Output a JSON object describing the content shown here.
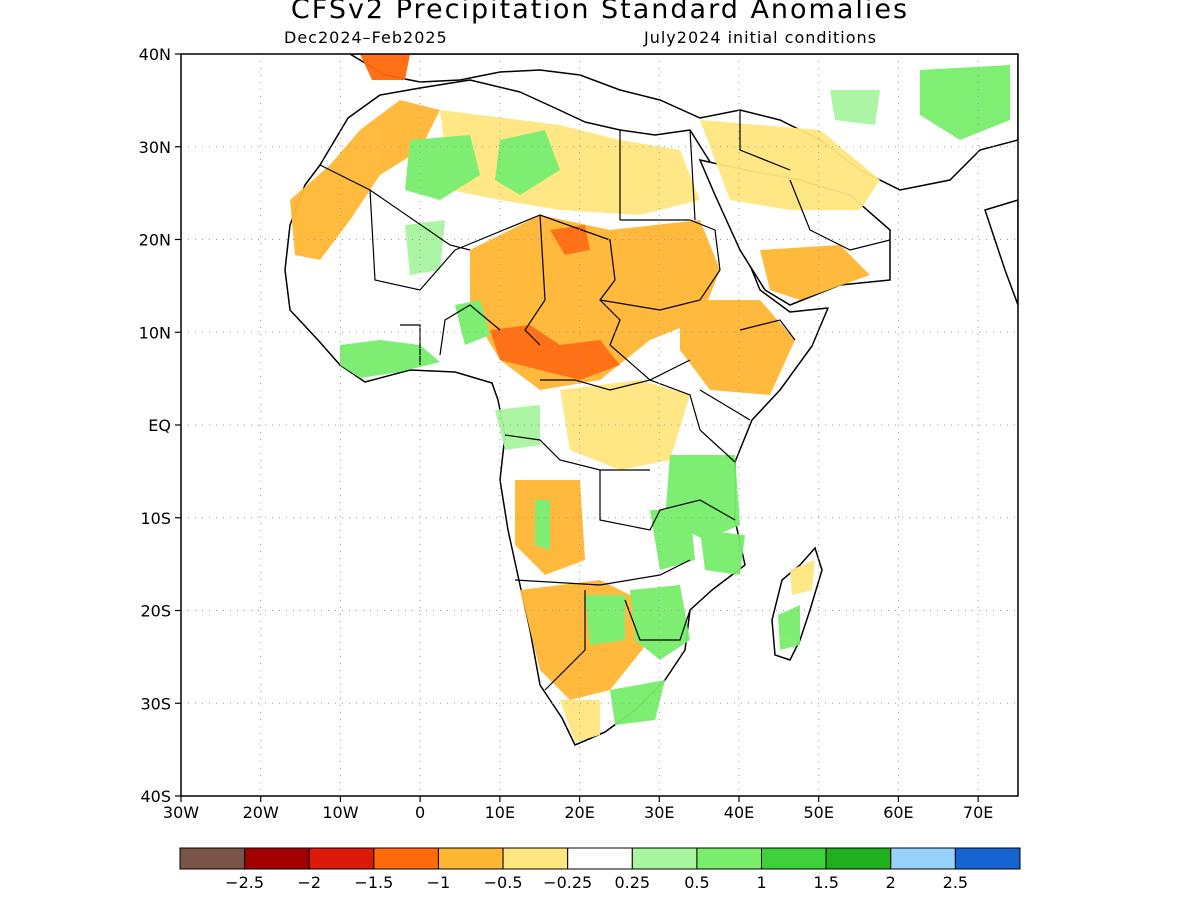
{
  "title": "CFSv2 Precipitation Standard Anomalies",
  "subtitle_left": "Dec2024–Feb2025",
  "subtitle_right": "July2024 initial conditions",
  "map": {
    "lat_range": [
      -40,
      40
    ],
    "lon_range": [
      -30,
      75
    ],
    "lat_ticks": [
      {
        "value": 40,
        "label": "40N"
      },
      {
        "value": 30,
        "label": "30N"
      },
      {
        "value": 20,
        "label": "20N"
      },
      {
        "value": 10,
        "label": "10N"
      },
      {
        "value": 0,
        "label": "EQ"
      },
      {
        "value": -10,
        "label": "10S"
      },
      {
        "value": -20,
        "label": "20S"
      },
      {
        "value": -30,
        "label": "30S"
      },
      {
        "value": -40,
        "label": "40S"
      }
    ],
    "lon_ticks": [
      {
        "value": -30,
        "label": "30W"
      },
      {
        "value": -20,
        "label": "20W"
      },
      {
        "value": -10,
        "label": "10W"
      },
      {
        "value": 0,
        "label": "0"
      },
      {
        "value": 10,
        "label": "10E"
      },
      {
        "value": 20,
        "label": "20E"
      },
      {
        "value": 30,
        "label": "30E"
      },
      {
        "value": 40,
        "label": "40E"
      },
      {
        "value": 50,
        "label": "50E"
      },
      {
        "value": 60,
        "label": "60E"
      },
      {
        "value": 70,
        "label": "70E"
      }
    ],
    "grid": "dotted"
  },
  "colorbar": {
    "colors": [
      "#7a5446",
      "#a50000",
      "#dd1a0a",
      "#ff6a0a",
      "#ffb733",
      "#ffe680",
      "#ffffff",
      "#a8f5a0",
      "#78ee6c",
      "#3ed23a",
      "#1fb01e",
      "#96d2fa",
      "#1464d2"
    ],
    "labels": [
      "−2.5",
      "−2",
      "−1.5",
      "−1",
      "−0.5",
      "−0.25",
      "0.25",
      "0.5",
      "1",
      "1.5",
      "2",
      "2.5"
    ]
  }
}
